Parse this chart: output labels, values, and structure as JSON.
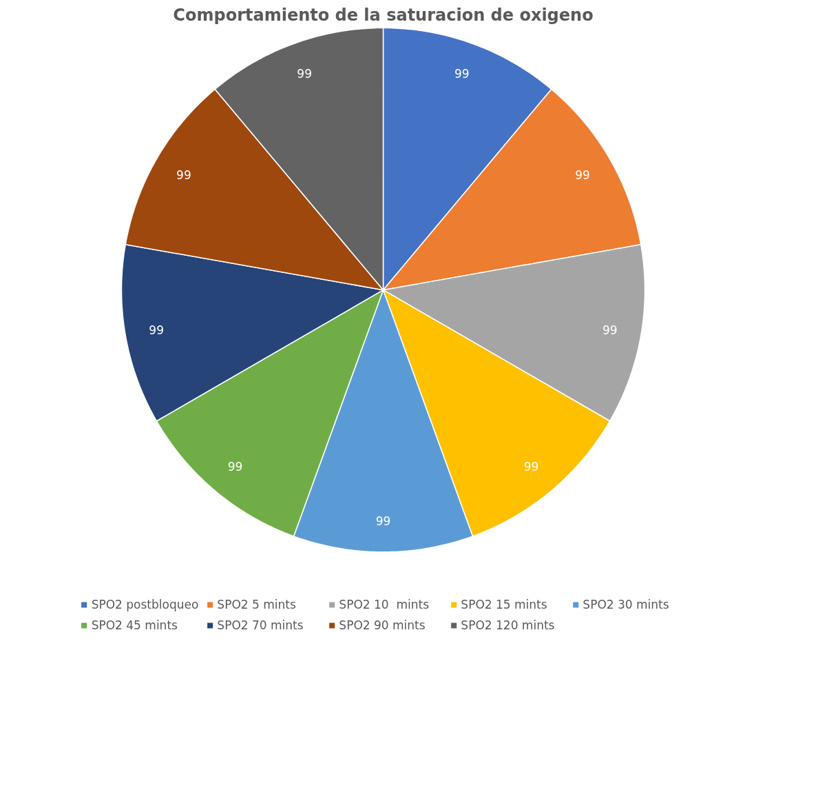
{
  "chart_data": {
    "type": "pie",
    "title": "Comportamiento de la saturacion de oxigeno",
    "categories": [
      "SPO2 postbloqueo",
      "SPO2 5 mints",
      "SPO2 10  mints",
      "SPO2 15 mints",
      "SPO2 30 mints",
      "SPO2 45 mints",
      "SPO2 70 mints",
      "SPO2 90 mints",
      "SPO2 120 mints"
    ],
    "values": [
      99,
      99,
      99,
      99,
      99,
      99,
      99,
      99,
      99
    ],
    "colors": [
      "#4472c4",
      "#ed7d31",
      "#a5a5a5",
      "#ffc000",
      "#5b9bd5",
      "#70ad47",
      "#264478",
      "#9e480e",
      "#636363"
    ],
    "data_labels": true,
    "legend": "bottom"
  }
}
